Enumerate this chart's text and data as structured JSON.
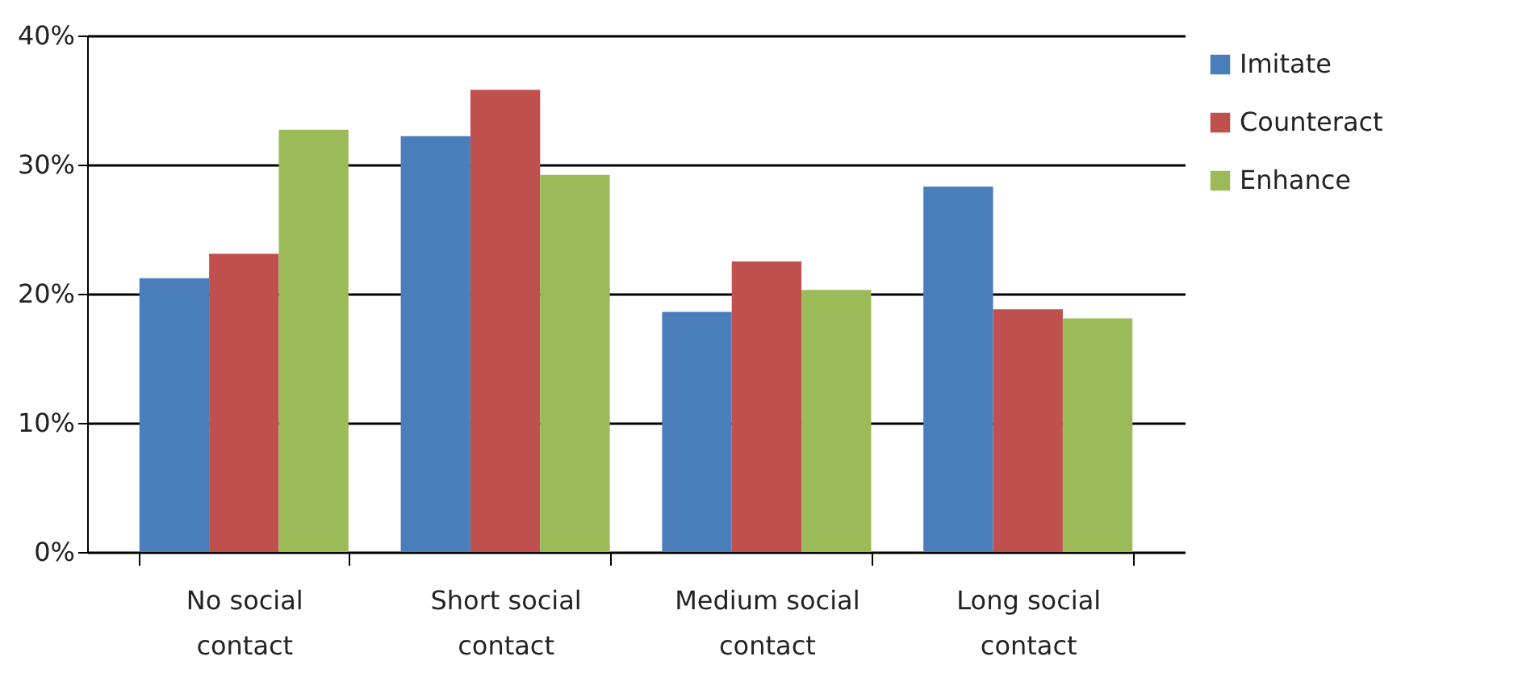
{
  "chart_data": {
    "type": "bar",
    "categories": [
      "No social contact",
      "Short social contact",
      "Medium social contact",
      "Long social contact"
    ],
    "series": [
      {
        "name": "Imitate",
        "color": "#4a7ebb",
        "values": [
          21.2,
          32.2,
          18.6,
          28.3
        ]
      },
      {
        "name": "Counteract",
        "color": "#c0504d",
        "values": [
          23.1,
          35.8,
          22.5,
          18.8
        ]
      },
      {
        "name": "Enhance",
        "color": "#9bbb59",
        "values": [
          32.7,
          29.2,
          20.3,
          18.1
        ]
      }
    ],
    "ylim": [
      0,
      40
    ],
    "yticks": [
      {
        "value": 0,
        "label": "0%"
      },
      {
        "value": 10,
        "label": "10%"
      },
      {
        "value": 20,
        "label": "20%"
      },
      {
        "value": 30,
        "label": "30%"
      },
      {
        "value": 40,
        "label": "40%"
      }
    ],
    "grid": "y",
    "legend": "right"
  }
}
